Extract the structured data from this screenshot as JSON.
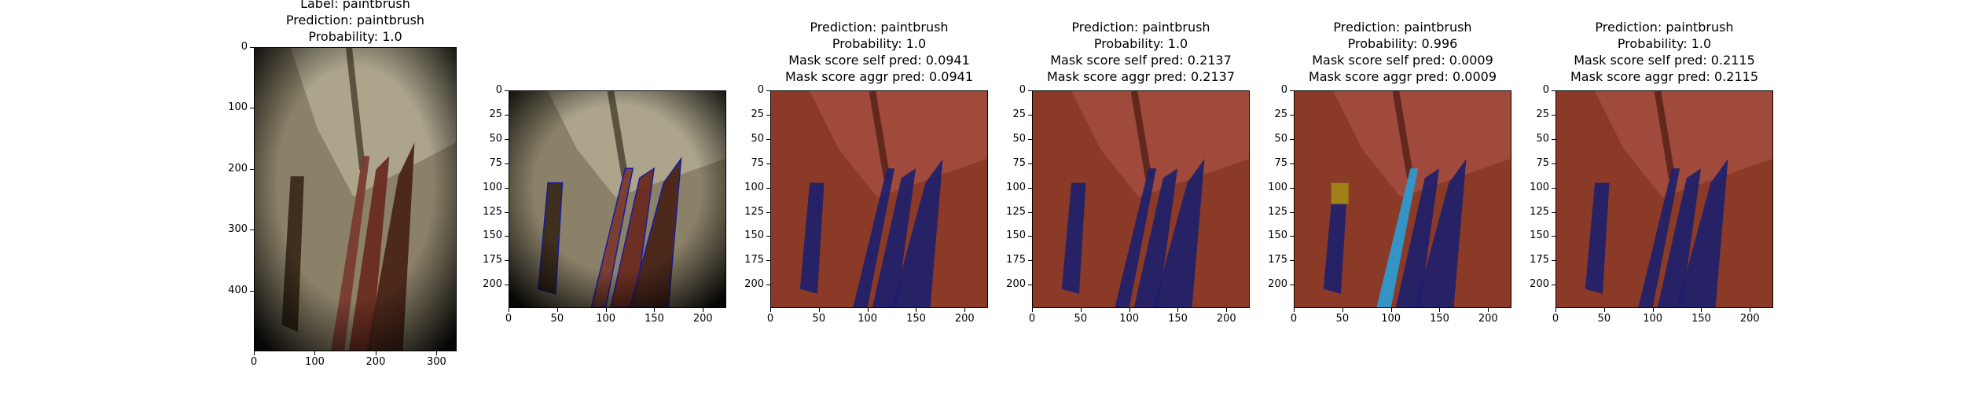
{
  "figure": {
    "panels": [
      {
        "title_lines": [
          "Label: paintbrush",
          "Prediction: paintbrush",
          "Probability: 1.0"
        ],
        "xticks": [
          "0",
          "100",
          "200",
          "300"
        ],
        "yticks": [
          "0",
          "100",
          "200",
          "300",
          "400"
        ],
        "overlay": "none"
      },
      {
        "title_lines": [],
        "xticks": [
          "0",
          "50",
          "100",
          "150",
          "200"
        ],
        "yticks": [
          "0",
          "25",
          "50",
          "75",
          "100",
          "125",
          "150",
          "175",
          "200"
        ],
        "overlay": "contours"
      },
      {
        "title_lines": [
          "Prediction: paintbrush",
          "Probability: 1.0",
          "Mask score self pred: 0.0941",
          "Mask score aggr pred: 0.0941"
        ],
        "xticks": [
          "0",
          "50",
          "100",
          "150",
          "200"
        ],
        "yticks": [
          "0",
          "25",
          "50",
          "75",
          "100",
          "125",
          "150",
          "175",
          "200"
        ],
        "overlay": "mask"
      },
      {
        "title_lines": [
          "Prediction: paintbrush",
          "Probability: 1.0",
          "Mask score self pred: 0.2137",
          "Mask score aggr pred: 0.2137"
        ],
        "xticks": [
          "0",
          "50",
          "100",
          "150",
          "200"
        ],
        "yticks": [
          "0",
          "25",
          "50",
          "75",
          "100",
          "125",
          "150",
          "175",
          "200"
        ],
        "overlay": "mask"
      },
      {
        "title_lines": [
          "Prediction: paintbrush",
          "Probability: 0.996",
          "Mask score self pred: 0.0009",
          "Mask score aggr pred: 0.0009"
        ],
        "xticks": [
          "0",
          "50",
          "100",
          "150",
          "200"
        ],
        "yticks": [
          "0",
          "25",
          "50",
          "75",
          "100",
          "125",
          "150",
          "175",
          "200"
        ],
        "overlay": "mask-alt"
      },
      {
        "title_lines": [
          "Prediction: paintbrush",
          "Probability: 1.0",
          "Mask score self pred: 0.2115",
          "Mask score aggr pred: 0.2115"
        ],
        "xticks": [
          "0",
          "50",
          "100",
          "150",
          "200"
        ],
        "yticks": [
          "0",
          "25",
          "50",
          "75",
          "100",
          "125",
          "150",
          "175",
          "200"
        ],
        "overlay": "mask"
      }
    ],
    "colors": {
      "photo_bg": "#8a8168",
      "mask_bg": "#8a3a26",
      "mask_blue": "#1c1f6e",
      "mask_cyan": "#2a9fd8",
      "mask_yellow": "#a08018",
      "contour": "#1a1aa0"
    }
  }
}
